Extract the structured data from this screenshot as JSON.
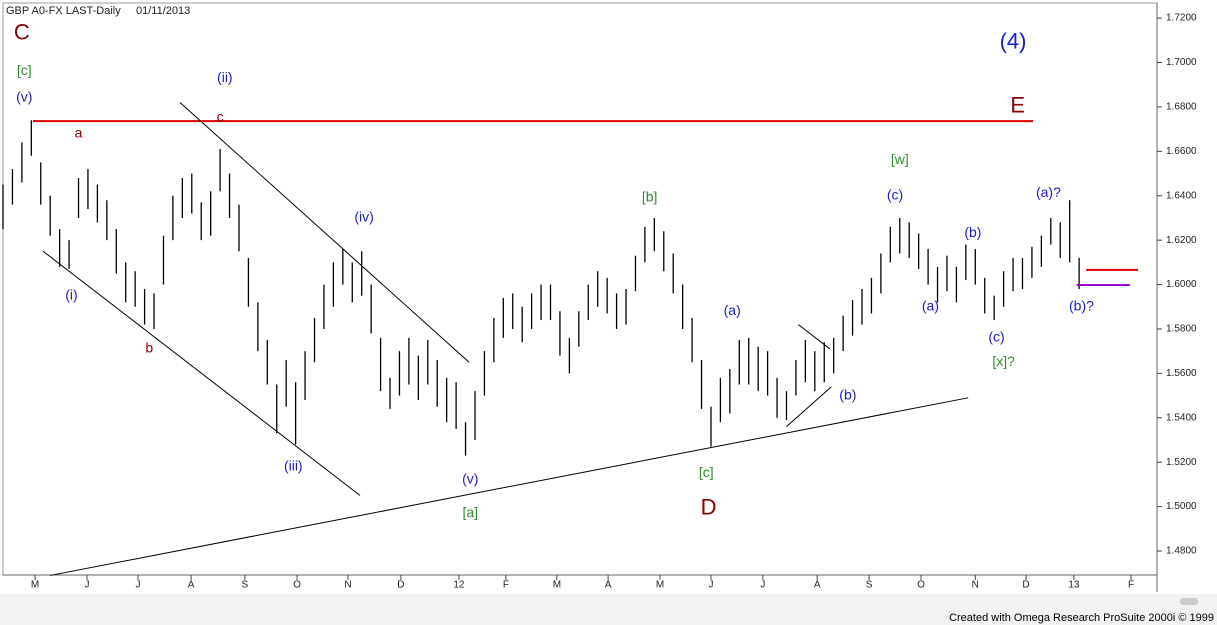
{
  "chart_data": {
    "type": "ohlc",
    "title": "GBP A0-FX LAST-Daily",
    "subtitle": "01/11/2013",
    "footer": "Created with Omega Research ProSuite 2000i © 1999",
    "color": "#000000",
    "xlim": [
      0,
      489
    ],
    "ylim": [
      1.4692,
      1.7268
    ],
    "yticks": [
      {
        "value": 1.48,
        "label": "1.4800"
      },
      {
        "value": 1.5,
        "label": "1.5000"
      },
      {
        "value": 1.52,
        "label": "1.5200"
      },
      {
        "value": 1.54,
        "label": "1.5400"
      },
      {
        "value": 1.56,
        "label": "1.5600"
      },
      {
        "value": 1.58,
        "label": "1.5800"
      },
      {
        "value": 1.6,
        "label": "1.6000"
      },
      {
        "value": 1.62,
        "label": "1.6200"
      },
      {
        "value": 1.64,
        "label": "1.6400"
      },
      {
        "value": 1.66,
        "label": "1.6600"
      },
      {
        "value": 1.68,
        "label": "1.6800"
      },
      {
        "value": 1.7,
        "label": "1.7000"
      },
      {
        "value": 1.72,
        "label": "1.7200"
      }
    ],
    "xticks": [
      {
        "value": 13.6,
        "label": "M"
      },
      {
        "value": 35.6,
        "label": "J"
      },
      {
        "value": 57.2,
        "label": "J"
      },
      {
        "value": 79.7,
        "label": "A"
      },
      {
        "value": 102.5,
        "label": "S"
      },
      {
        "value": 124.6,
        "label": "O"
      },
      {
        "value": 146.2,
        "label": "N"
      },
      {
        "value": 168.6,
        "label": "D"
      },
      {
        "value": 193.2,
        "label": "12"
      },
      {
        "value": 213.1,
        "label": "F"
      },
      {
        "value": 234.7,
        "label": "M"
      },
      {
        "value": 256.4,
        "label": "A"
      },
      {
        "value": 278.4,
        "label": "M"
      },
      {
        "value": 300,
        "label": "J"
      },
      {
        "value": 322,
        "label": "J"
      },
      {
        "value": 345,
        "label": "A"
      },
      {
        "value": 367,
        "label": "S"
      },
      {
        "value": 389,
        "label": "O"
      },
      {
        "value": 412,
        "label": "N"
      },
      {
        "value": 433.5,
        "label": "D"
      },
      {
        "value": 453.8,
        "label": "13"
      },
      {
        "value": 478,
        "label": "F"
      }
    ],
    "x": [
      0,
      4,
      8,
      12,
      16,
      20,
      24,
      28,
      32,
      36,
      40,
      44,
      48,
      52,
      56,
      60,
      64,
      68,
      72,
      76,
      80,
      84,
      88,
      92,
      96,
      100,
      104,
      108,
      112,
      116,
      120,
      124,
      128,
      132,
      136,
      140,
      144,
      148,
      152,
      156,
      160,
      164,
      168,
      172,
      176,
      180,
      184,
      188,
      192,
      196,
      200,
      204,
      208,
      212,
      216,
      220,
      224,
      228,
      232,
      236,
      240,
      244,
      248,
      252,
      256,
      260,
      264,
      268,
      272,
      276,
      280,
      284,
      288,
      292,
      296,
      300,
      304,
      308,
      312,
      316,
      320,
      324,
      328,
      332,
      336,
      340,
      344,
      348,
      352,
      356,
      360,
      364,
      368,
      372,
      376,
      380,
      384,
      388,
      392,
      396,
      400,
      404,
      408,
      412,
      416,
      420,
      424,
      428,
      432,
      436,
      440,
      444,
      448,
      452,
      456
    ],
    "high": [
      1.645,
      1.652,
      1.664,
      1.674,
      1.655,
      1.64,
      1.625,
      1.62,
      1.648,
      1.652,
      1.645,
      1.638,
      1.625,
      1.61,
      1.606,
      1.598,
      1.596,
      1.622,
      1.64,
      1.648,
      1.65,
      1.637,
      1.642,
      1.661,
      1.65,
      1.636,
      1.612,
      1.592,
      1.575,
      1.555,
      1.566,
      1.556,
      1.57,
      1.585,
      1.6,
      1.61,
      1.616,
      1.61,
      1.615,
      1.6,
      1.576,
      1.558,
      1.57,
      1.576,
      1.568,
      1.575,
      1.566,
      1.558,
      1.556,
      1.538,
      1.552,
      1.57,
      1.585,
      1.594,
      1.596,
      1.59,
      1.596,
      1.6,
      1.6,
      1.588,
      1.576,
      1.588,
      1.6,
      1.606,
      1.603,
      1.596,
      1.598,
      1.613,
      1.626,
      1.63,
      1.624,
      1.614,
      1.6,
      1.585,
      1.566,
      1.545,
      1.558,
      1.562,
      1.575,
      1.576,
      1.572,
      1.57,
      1.558,
      1.552,
      1.566,
      1.575,
      1.57,
      1.574,
      1.576,
      1.586,
      1.593,
      1.598,
      1.603,
      1.614,
      1.626,
      1.63,
      1.628,
      1.623,
      1.616,
      1.608,
      1.613,
      1.608,
      1.618,
      1.616,
      1.603,
      1.595,
      1.606,
      1.612,
      1.612,
      1.617,
      1.622,
      1.63,
      1.628,
      1.638,
      1.612
    ],
    "low": [
      1.625,
      1.636,
      1.646,
      1.658,
      1.636,
      1.622,
      1.608,
      1.607,
      1.63,
      1.634,
      1.628,
      1.62,
      1.605,
      1.592,
      1.59,
      1.582,
      1.58,
      1.6,
      1.62,
      1.63,
      1.632,
      1.62,
      1.622,
      1.642,
      1.63,
      1.615,
      1.59,
      1.57,
      1.555,
      1.533,
      1.545,
      1.528,
      1.548,
      1.565,
      1.58,
      1.59,
      1.6,
      1.592,
      1.595,
      1.578,
      1.552,
      1.544,
      1.55,
      1.555,
      1.548,
      1.555,
      1.545,
      1.538,
      1.535,
      1.523,
      1.53,
      1.55,
      1.565,
      1.576,
      1.58,
      1.574,
      1.58,
      1.584,
      1.584,
      1.568,
      1.56,
      1.572,
      1.584,
      1.59,
      1.587,
      1.58,
      1.582,
      1.597,
      1.61,
      1.615,
      1.606,
      1.596,
      1.58,
      1.565,
      1.544,
      1.527,
      1.538,
      1.542,
      1.555,
      1.555,
      1.552,
      1.55,
      1.54,
      1.539,
      1.55,
      1.556,
      1.552,
      1.556,
      1.56,
      1.57,
      1.577,
      1.582,
      1.587,
      1.596,
      1.61,
      1.614,
      1.612,
      1.607,
      1.6,
      1.592,
      1.597,
      1.592,
      1.602,
      1.6,
      1.587,
      1.584,
      1.59,
      1.597,
      1.598,
      1.603,
      1.608,
      1.618,
      1.612,
      1.61,
      1.598
    ],
    "lines": [
      {
        "color": "#dd0000",
        "x": [
          12.7,
          436.5
        ],
        "y": [
          1.6736,
          1.6736
        ]
      },
      {
        "color": "#000000",
        "x": [
          75,
          197.5
        ],
        "y": [
          1.682,
          1.565
        ]
      },
      {
        "color": "#000000",
        "x": [
          17,
          151.3
        ],
        "y": [
          1.615,
          1.505
        ]
      },
      {
        "color": "#000000",
        "x": [
          20,
          409
        ],
        "y": [
          1.469,
          1.549
        ]
      },
      {
        "color": "#000000",
        "x": [
          337,
          350.4
        ],
        "y": [
          1.582,
          1.571
        ]
      },
      {
        "color": "#000000",
        "x": [
          332,
          351
        ],
        "y": [
          1.536,
          1.554
        ]
      },
      {
        "color": "#dd0000",
        "x": [
          459,
          481
        ],
        "y": [
          1.6066,
          1.6066
        ]
      },
      {
        "color": "#9900cc",
        "x": [
          455,
          477.5
        ],
        "y": [
          1.5998,
          1.5998
        ]
      }
    ],
    "labels": [
      {
        "text": "[c]",
        "color": "#2e8b2e",
        "x": 9,
        "y": 1.696
      },
      {
        "text": "(v)",
        "color": "#1a1ad0",
        "x": 9,
        "y": 1.684
      },
      {
        "text": "a",
        "color": "#8b0000",
        "x": 32,
        "y": 1.668
      },
      {
        "text": "(ii)",
        "color": "#1a1ad0",
        "x": 94,
        "y": 1.693
      },
      {
        "text": "c",
        "color": "#8b0000",
        "x": 92,
        "y": 1.675
      },
      {
        "text": "(i)",
        "color": "#1a1ad0",
        "x": 29,
        "y": 1.595
      },
      {
        "text": "b",
        "color": "#8b0000",
        "x": 62,
        "y": 1.571
      },
      {
        "text": "(iv)",
        "color": "#1a1ad0",
        "x": 153,
        "y": 1.63
      },
      {
        "text": "(iii)",
        "color": "#1a1ad0",
        "x": 123,
        "y": 1.518
      },
      {
        "text": "(v)",
        "color": "#1a1ad0",
        "x": 198,
        "y": 1.512
      },
      {
        "text": "[a]",
        "color": "#2e8b2e",
        "x": 198,
        "y": 1.497
      },
      {
        "text": "[b]",
        "color": "#2e8b2e",
        "x": 274,
        "y": 1.639
      },
      {
        "text": "(a)",
        "color": "#1a1ad0",
        "x": 309,
        "y": 1.588
      },
      {
        "text": "[c]",
        "color": "#2e8b2e",
        "x": 298,
        "y": 1.515
      },
      {
        "text": "(b)",
        "color": "#1a1ad0",
        "x": 358,
        "y": 1.55
      },
      {
        "text": "[w]",
        "color": "#2e8b2e",
        "x": 380,
        "y": 1.656
      },
      {
        "text": "(c)",
        "color": "#1a1ad0",
        "x": 378,
        "y": 1.64
      },
      {
        "text": "(b)",
        "color": "#1a1ad0",
        "x": 411,
        "y": 1.623
      },
      {
        "text": "(a)",
        "color": "#1a1ad0",
        "x": 393,
        "y": 1.59
      },
      {
        "text": "(c)",
        "color": "#1a1ad0",
        "x": 421,
        "y": 1.576
      },
      {
        "text": "[x]?",
        "color": "#2e8b2e",
        "x": 424,
        "y": 1.565
      },
      {
        "text": "(a)?",
        "color": "#1a1ad0",
        "x": 443,
        "y": 1.641
      },
      {
        "text": "(b)?",
        "color": "#1a1ad0",
        "x": 457,
        "y": 1.59
      }
    ],
    "major_labels": [
      {
        "text": "C",
        "color": "#8b0000",
        "x": 8,
        "y": 1.713
      },
      {
        "text": "(4)",
        "color": "#1a1ad0",
        "x": 428,
        "y": 1.709
      },
      {
        "text": "E",
        "color": "#8b0000",
        "x": 430,
        "y": 1.68
      },
      {
        "text": "D",
        "color": "#8b0000",
        "x": 299,
        "y": 1.499
      }
    ]
  }
}
